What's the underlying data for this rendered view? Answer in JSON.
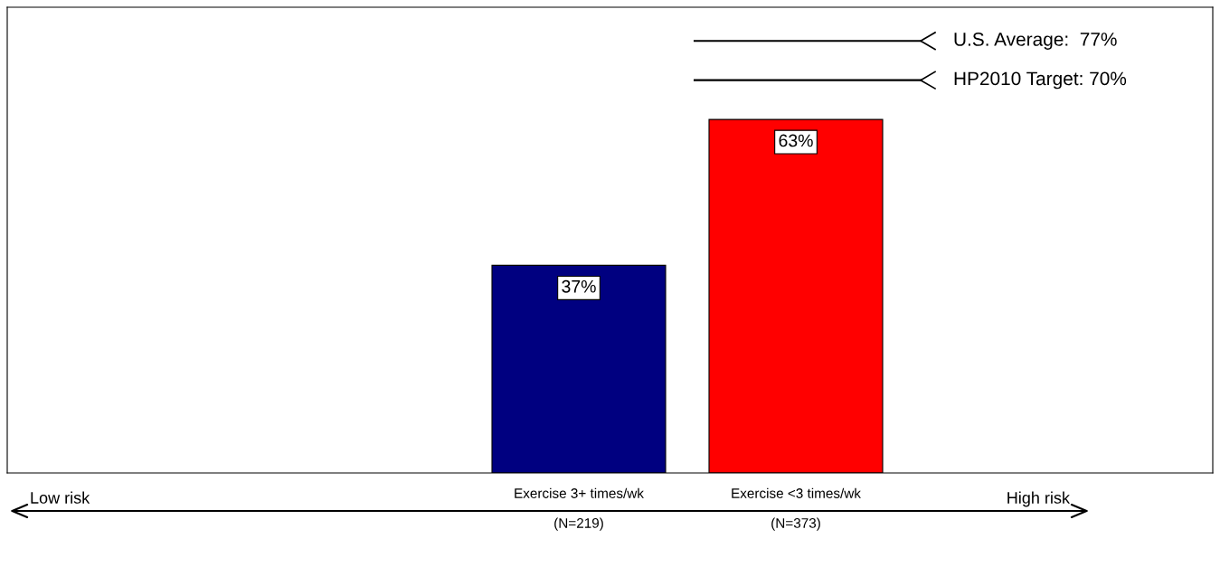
{
  "chart_data": {
    "type": "bar",
    "categories": [
      "Exercise 3+ times/wk\n\n(N=219)",
      "Exercise <3 times/wk\n\n(N=373)"
    ],
    "values": [
      37,
      63
    ],
    "colors": [
      "#000080",
      "#ff0000"
    ],
    "value_labels": [
      "37%",
      "63%"
    ],
    "ylim": [
      0,
      83
    ],
    "tick_labels": "x",
    "ref_lines": [
      {
        "axis": "y",
        "value": 77,
        "label": "U.S. Average:  77%",
        "color": "#000000"
      },
      {
        "axis": "y",
        "value": 70,
        "label": "HP2010 Target: 70%",
        "color": "#000000"
      }
    ],
    "annotations": [
      "Low risk",
      "High risk"
    ]
  }
}
